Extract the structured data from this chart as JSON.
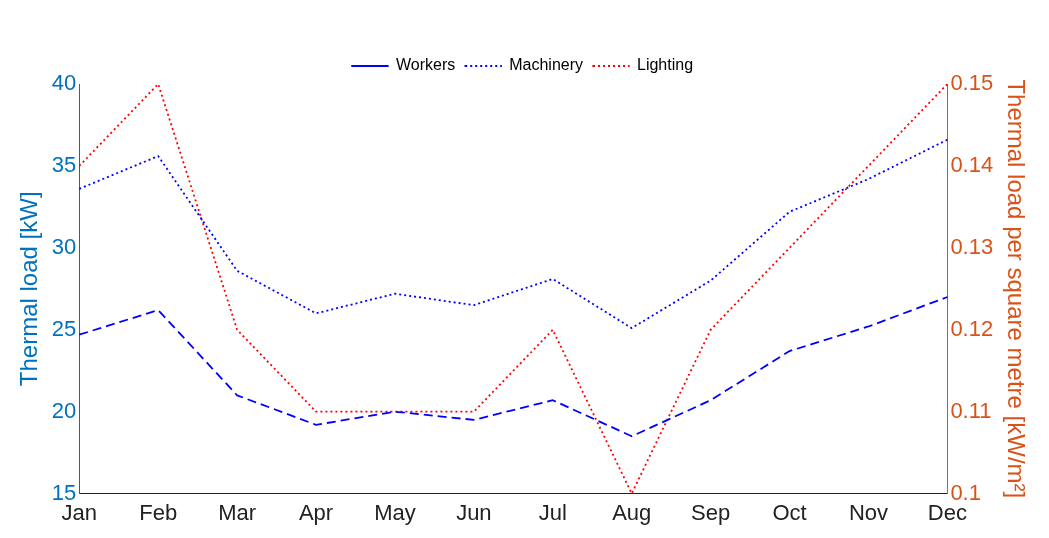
{
  "chart_data": {
    "type": "line",
    "ylabel": "Thermal load [kW]",
    "y2label": "Thermal load per square metre [kW/m²]",
    "categories": [
      "Jan",
      "Feb",
      "Mar",
      "Apr",
      "May",
      "Jun",
      "Jul",
      "Aug",
      "Sep",
      "Oct",
      "Nov",
      "Dec"
    ],
    "series": [
      {
        "name": "Workers",
        "color": "#0000ff",
        "line_style": "dashed",
        "values": [
          24.7,
          26.2,
          21,
          19.2,
          20,
          19.5,
          20.7,
          18.5,
          20.7,
          23.7,
          25.2,
          27
        ]
      },
      {
        "name": "Machinery",
        "color": "#0000ff",
        "line_style": "dotted",
        "values": [
          33.6,
          35.6,
          28.6,
          26,
          27.2,
          26.5,
          28.1,
          25.1,
          28,
          32.2,
          34.2,
          36.6
        ]
      },
      {
        "name": "Lighting",
        "color": "#ff0000",
        "line_style": "dotted",
        "axis": "y2",
        "values": [
          0.14,
          0.15,
          0.12,
          0.11,
          0.11,
          0.11,
          0.12,
          0.1,
          0.12,
          0.13,
          0.14,
          0.15
        ]
      }
    ],
    "ylim": [
      15,
      40
    ],
    "yticks": [
      15,
      20,
      25,
      30,
      35,
      40
    ],
    "y2lim": [
      0.1,
      0.15
    ],
    "y2ticks": [
      0.1,
      0.11,
      0.12,
      0.13,
      0.14,
      0.15
    ],
    "grid": false,
    "legend": "top",
    "marker": "none"
  }
}
